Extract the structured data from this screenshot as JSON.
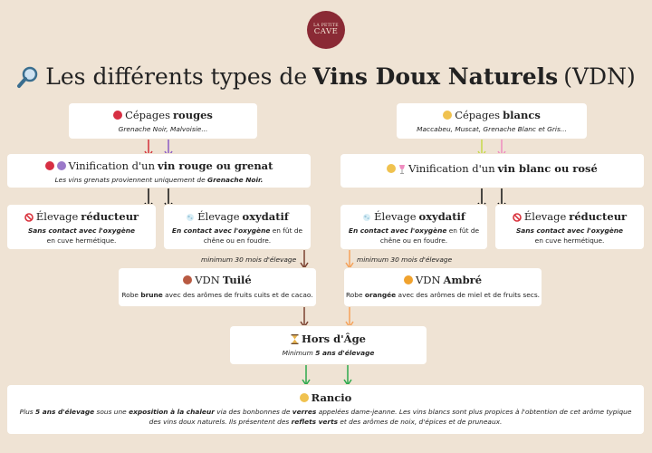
{
  "logo": {
    "line1": "LA PETITE",
    "line2": "CAVE"
  },
  "title": {
    "icon": "magnifier-icon",
    "part1": "Les différents types de",
    "bold": "Vins Doux Naturels",
    "part2": "(VDN)"
  },
  "cepages_rouges": {
    "label": "Cépages",
    "bold": "rouges",
    "text": "Grenache Noir, Malvoisie..."
  },
  "cepages_blancs": {
    "label": "Cépages",
    "bold": "blancs",
    "text": "Maccabeu, Muscat, Grenache Blanc et Gris..."
  },
  "vinif_rouge": {
    "label": "Vinification d'un",
    "bold": "vin rouge ou grenat",
    "text_pre": "Les vins grenats proviennent uniquement de",
    "text_bold": "Grenache Noir."
  },
  "vinif_blanc": {
    "label": "Vinification d'un",
    "bold": "vin blanc ou rosé"
  },
  "elev_reducteur_left": {
    "label": "Élevage",
    "bold": "réducteur",
    "text_bold": "Sans contact avec l'oxygène",
    "text": "en cuve hermétique."
  },
  "elev_oxydatif_left": {
    "label": "Élevage",
    "bold": "oxydatif",
    "text_bold": "En contact avec l'oxygène",
    "text_rest": "en fût de chêne ou en foudre."
  },
  "elev_oxydatif_right": {
    "label": "Élevage",
    "bold": "oxydatif",
    "text_bold": "En contact avec l'oxygène",
    "text_rest": "en fût de chêne ou en foudre."
  },
  "elev_reducteur_right": {
    "label": "Élevage",
    "bold": "réducteur",
    "text_bold": "Sans contact avec l'oxygène",
    "text": "en cuve hermétique."
  },
  "note_left": "minimum 30 mois d'élevage",
  "note_right": "minimum 30 mois d'élevage",
  "vdn_tuile": {
    "label": "VDN",
    "bold": "Tuilé",
    "pre": "Robe",
    "bold2": "brune",
    "post": "avec des arômes de fruits cuits et de cacao."
  },
  "vdn_ambre": {
    "label": "VDN",
    "bold": "Ambré",
    "pre": "Robe",
    "bold2": "orangée",
    "post": "avec des arômes de miel et de fruits secs."
  },
  "hors_age": {
    "bold": "Hors d'Âge",
    "pre": "Minimum",
    "bold2": "5 ans d'élevage"
  },
  "rancio": {
    "bold": "Rancio",
    "t1": "Plus",
    "b1": "5 ans d'élevage",
    "t2": "sous une",
    "b2": "exposition à la chaleur",
    "t3": "via des bonbonnes de",
    "b3": "verres",
    "t4": "appelées dame-jeanne. Les vins blancs sont plus propices à l'obtention de cet arôme typique des vins doux naturels. Ils présentent des",
    "b4": "reflets verts",
    "t5": "et des arômes de noix, d'épices et de pruneaux."
  },
  "colors": {
    "background": "#efe3d4",
    "logo": "#8a2a35",
    "red_dot": "#d72f43",
    "purple_dot": "#9b79c9",
    "yellow_dot": "#f0c24f",
    "tuile": "#b85a42",
    "ambre": "#f0a22e",
    "prohibit": "#d9323c",
    "arrow_red": "#d3303a",
    "arrow_purple": "#8b5bc4",
    "arrow_black": "#111111",
    "arrow_brown": "#7a4130",
    "arrow_orange": "#f5a25a",
    "arrow_green": "#2ca94c",
    "arrow_yellowgreen": "#c6d94a",
    "arrow_pink": "#ef8cc0"
  },
  "icons": [
    "magnifier-icon",
    "prohibit-icon",
    "bubble-icon",
    "hourglass-icon",
    "grape-icon",
    "wine-glass-icon"
  ]
}
